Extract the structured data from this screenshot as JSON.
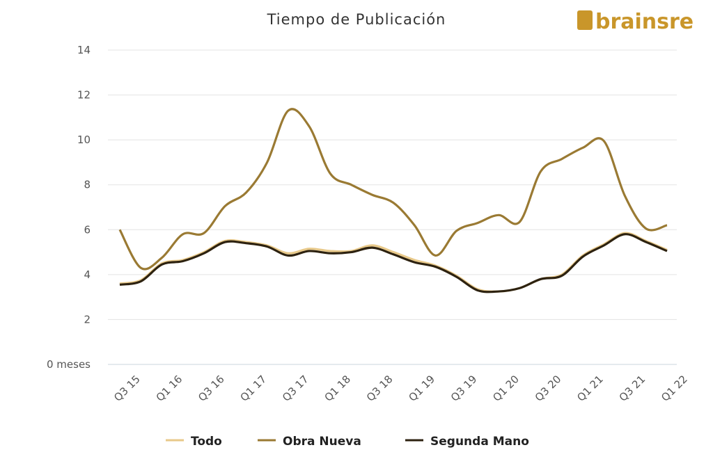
{
  "chart_data": {
    "type": "line",
    "title": "Tiempo de Publicación",
    "logo": "brainsre",
    "categories": [
      "Q3 15",
      null,
      "Q1 16",
      null,
      "Q3 16",
      null,
      "Q1 17",
      null,
      "Q3 17",
      null,
      "Q1 18",
      null,
      "Q3 18",
      null,
      "Q1 19",
      null,
      "Q3 19",
      null,
      "Q1 20",
      null,
      "Q3 20",
      null,
      "Q1 21",
      null,
      "Q3 21",
      null,
      "Q1 22"
    ],
    "series": [
      {
        "name": "Todo",
        "color": "#e8c98a",
        "values": [
          3.6,
          3.75,
          4.5,
          4.65,
          5.0,
          5.5,
          5.45,
          5.3,
          4.95,
          5.15,
          5.05,
          5.05,
          5.3,
          5.0,
          4.65,
          4.4,
          3.95,
          3.35,
          3.25,
          3.4,
          3.8,
          4.0,
          4.85,
          5.35,
          5.85,
          5.5,
          5.1
        ]
      },
      {
        "name": "Obra Nueva",
        "color": "#9a7a33",
        "values": [
          6.0,
          4.3,
          4.75,
          5.8,
          5.85,
          7.05,
          7.65,
          9.0,
          11.3,
          10.6,
          8.5,
          8.0,
          7.55,
          7.2,
          6.2,
          4.85,
          5.95,
          6.3,
          6.65,
          6.35,
          8.6,
          9.15,
          9.65,
          9.95,
          7.5,
          6.05,
          6.2
        ]
      },
      {
        "name": "Segunda Mano",
        "color": "#2d2210",
        "values": [
          3.55,
          3.7,
          4.45,
          4.6,
          4.95,
          5.45,
          5.4,
          5.25,
          4.85,
          5.05,
          4.95,
          5.0,
          5.2,
          4.9,
          4.55,
          4.35,
          3.9,
          3.3,
          3.25,
          3.4,
          3.8,
          3.95,
          4.8,
          5.3,
          5.8,
          5.45,
          5.05
        ]
      }
    ],
    "ylim": [
      0,
      14
    ],
    "yticks": [
      {
        "value": 0,
        "label": "0 meses"
      },
      2,
      4,
      6,
      8,
      10,
      12,
      14
    ],
    "grid": true,
    "legend": "bottom"
  }
}
